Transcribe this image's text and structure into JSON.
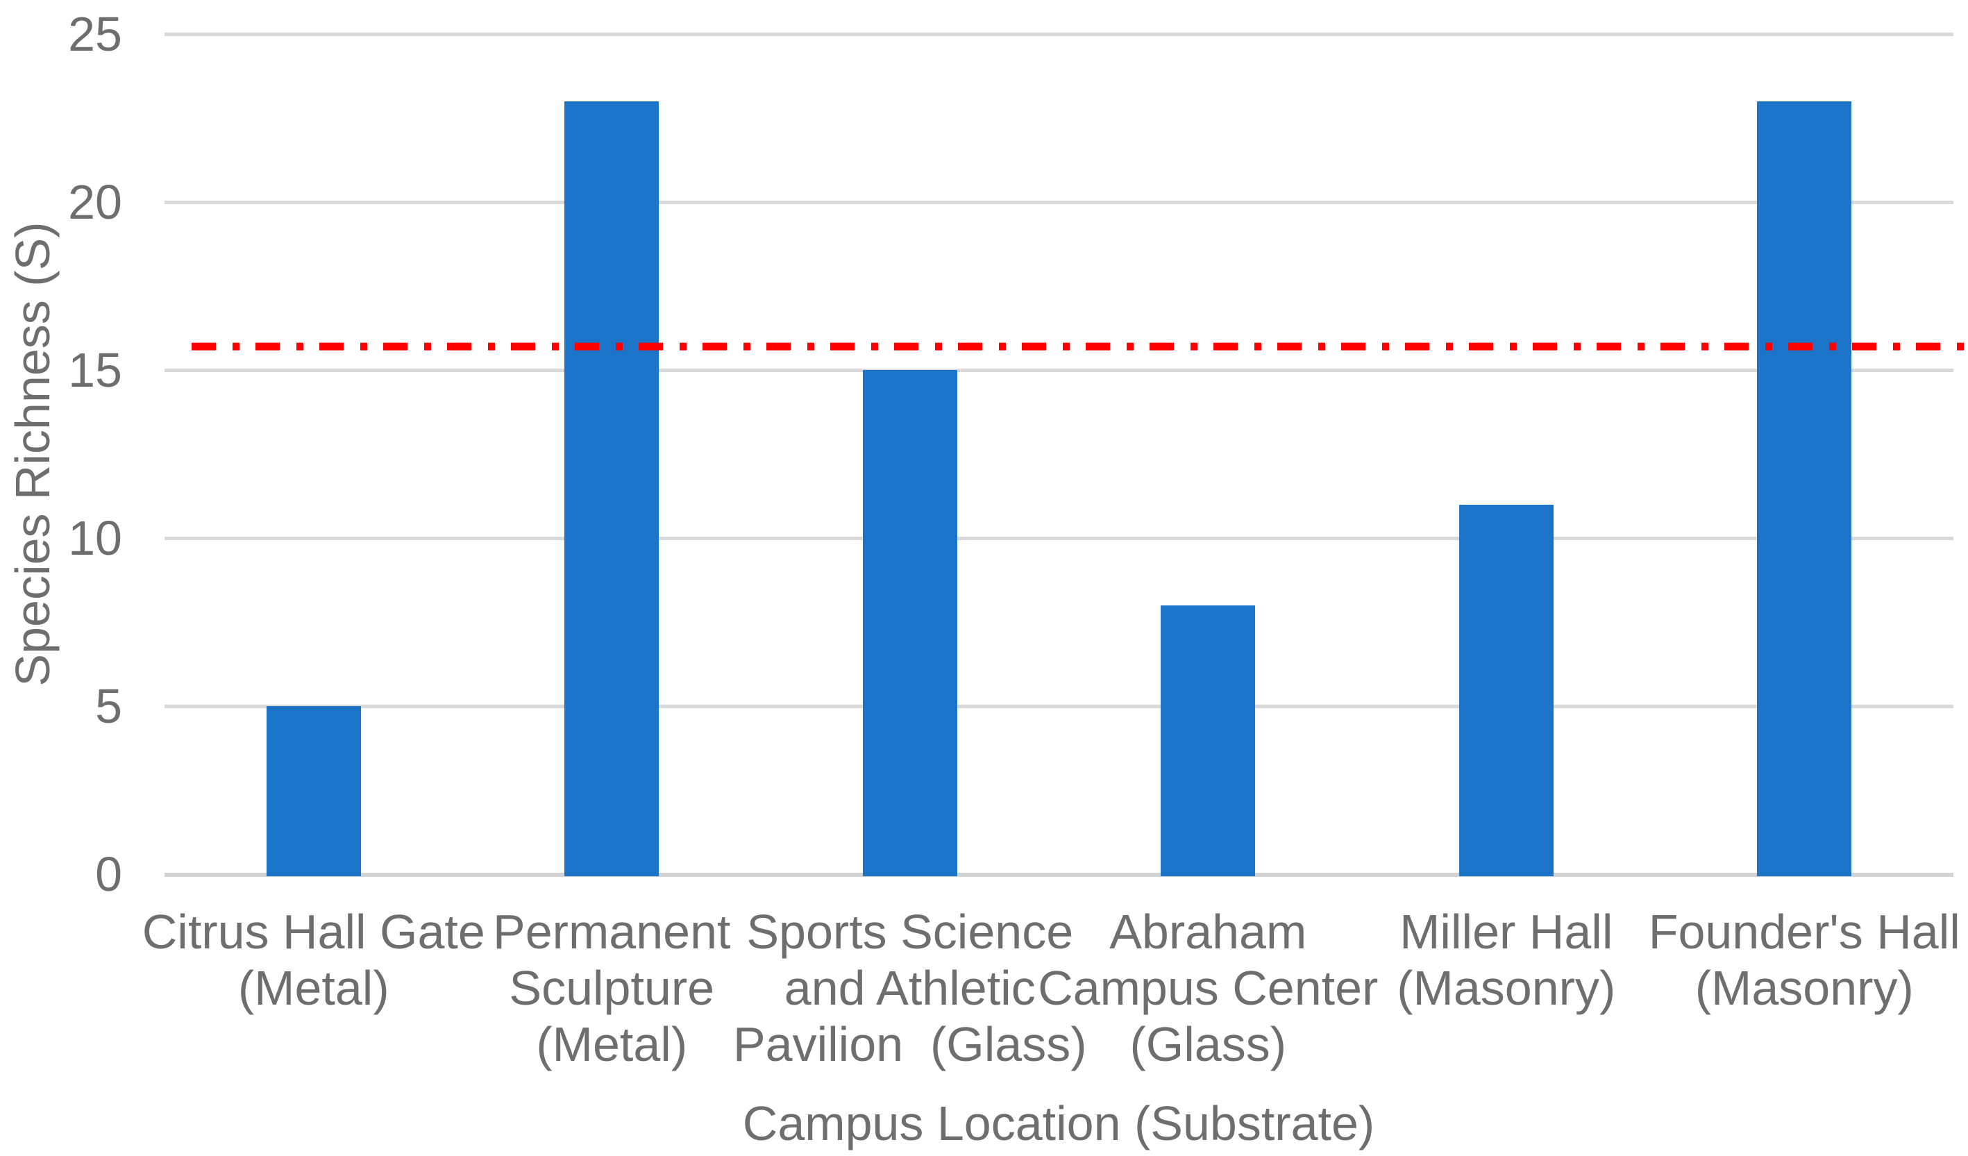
{
  "chart_data": {
    "type": "bar",
    "title": "",
    "categories": [
      "Citrus Hall Gate (Metal)",
      "Permanent Sculpture (Metal)",
      "Sports Science and Athletic Pavilion  (Glass)",
      "Abraham Campus Center (Glass)",
      "Miller Hall (Masonry)",
      "Founder's Hall (Masonry)"
    ],
    "category_lines": [
      [
        "Citrus Hall Gate",
        "(Metal)"
      ],
      [
        "Permanent",
        "Sculpture",
        "(Metal)"
      ],
      [
        "Sports Science",
        "and Athletic",
        "Pavilion  (Glass)"
      ],
      [
        "Abraham",
        "Campus Center",
        "(Glass)"
      ],
      [
        "Miller Hall",
        "(Masonry)"
      ],
      [
        "Founder's Hall",
        "(Masonry)"
      ]
    ],
    "values": [
      5,
      23,
      15,
      8,
      11,
      23
    ],
    "xlabel": "Campus Location (Substrate)",
    "ylabel": "Species Richness (S)",
    "ylim": [
      0,
      25
    ],
    "yticks": [
      0,
      5,
      10,
      15,
      20,
      25
    ],
    "grid": "horizontal",
    "legend": "none",
    "reference_line": {
      "value": 15.7,
      "style": "dash-dot",
      "color": "#ff0000"
    },
    "bar_color": "#1b74c8",
    "gridline_color": "#d9d9d9",
    "text_color": "#6e6e6e"
  }
}
